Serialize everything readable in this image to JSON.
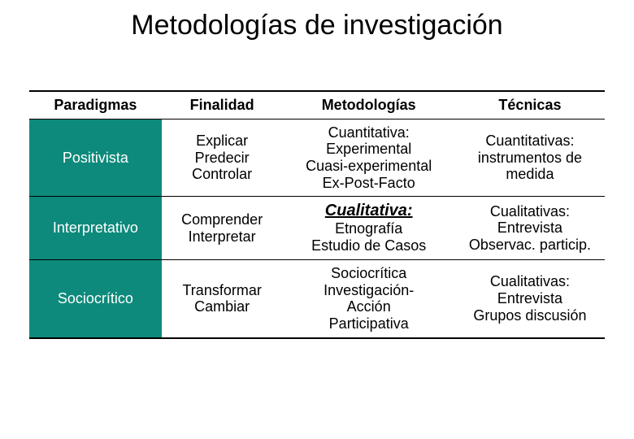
{
  "title": "Metodologías de investigación",
  "table": {
    "row_header_bg": "#0d8a7b",
    "columns": [
      "Paradigmas",
      "Finalidad",
      "Metodologías",
      "Técnicas"
    ],
    "rows": [
      {
        "paradigma": "Positivista",
        "finalidad": "Explicar\nPredecir\nControlar",
        "metodologias_emph": "",
        "metodologias": "Cuantitativa:\nExperimental\nCuasi-experimental\nEx-Post-Facto",
        "tecnicas": "Cuantitativas:\ninstrumentos de\nmedida"
      },
      {
        "paradigma": "Interpretativo",
        "finalidad": "Comprender\nInterpretar",
        "metodologias_emph": "Cualitativa:",
        "metodologias": "Etnografía\nEstudio de Casos",
        "tecnicas": "Cualitativas:\nEntrevista\nObservac. particip."
      },
      {
        "paradigma": "Sociocrítico",
        "finalidad": "Transformar\nCambiar",
        "metodologias_emph": "",
        "metodologias": "Sociocrítica\nInvestigación-\nAcción\nParticipativa",
        "tecnicas": "Cualitativas:\nEntrevista\nGrupos discusión"
      }
    ]
  }
}
